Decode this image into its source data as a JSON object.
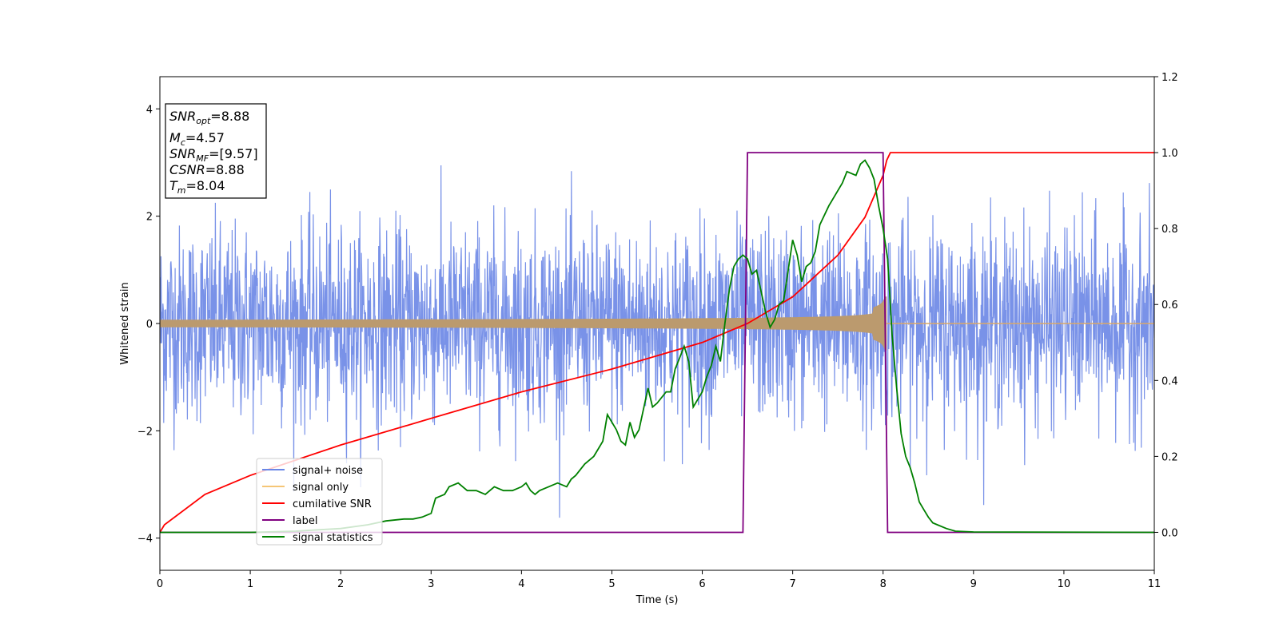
{
  "chart_data": {
    "type": "line",
    "xlabel": "Time (s)",
    "ylabel": "Whitened strain",
    "xlim": [
      0,
      11
    ],
    "ylim": [
      -4.6,
      4.6
    ],
    "y2lim": [
      -0.1,
      1.2
    ],
    "xticks": [
      "0",
      "1",
      "2",
      "3",
      "4",
      "5",
      "6",
      "7",
      "8",
      "9",
      "10",
      "11"
    ],
    "yticks": [
      "−4",
      "−2",
      "0",
      "2",
      "4"
    ],
    "y2ticks": [
      "0.0",
      "0.2",
      "0.4",
      "0.6",
      "0.8",
      "1.0",
      "1.2"
    ],
    "grid": false,
    "legend_position": "lower-left",
    "info_box": {
      "snr_opt": {
        "symbol": "SNR",
        "sub": "opt",
        "value": "=8.88"
      },
      "mc": {
        "symbol": "M",
        "sub": "c",
        "value": "=4.57"
      },
      "snr_mf": {
        "symbol": "SNR",
        "sub": "MF",
        "value": "=[9.57]"
      },
      "csnr": {
        "symbol": "CSNR",
        "sub": "",
        "value": "=8.88"
      },
      "tm": {
        "symbol": "T",
        "sub": "m",
        "value": "=8.04"
      }
    },
    "series": [
      {
        "name": "signal+ noise",
        "color": "#6a86e6",
        "axis": "left",
        "description_values": {
          "noise_std": 0.9,
          "range": [
            -3.7,
            4.2
          ],
          "spans": [
            0,
            11
          ]
        }
      },
      {
        "name": "signal only",
        "color": "#f5b041",
        "axis": "left",
        "envelope": {
          "t_start": 0,
          "t_merge": 8.04,
          "amp_start": 0.07,
          "amp_peak": 0.65
        }
      },
      {
        "name": "cumilative SNR",
        "color": "#ff0000",
        "axis": "right",
        "x": [
          0,
          0.05,
          0.5,
          1,
          2,
          3,
          4,
          5,
          6,
          6.5,
          7,
          7.5,
          7.8,
          8.0,
          8.04,
          8.08,
          11
        ],
        "y": [
          0.0,
          0.02,
          0.1,
          0.15,
          0.23,
          0.3,
          0.37,
          0.43,
          0.5,
          0.55,
          0.62,
          0.73,
          0.83,
          0.94,
          0.98,
          1.0,
          1.0
        ]
      },
      {
        "name": "label",
        "color": "#800080",
        "axis": "right",
        "x": [
          0,
          6.45,
          6.5,
          8.0,
          8.05,
          11
        ],
        "y": [
          0,
          0,
          1,
          1,
          0,
          0
        ]
      },
      {
        "name": "signal statistics",
        "color": "#008000",
        "axis": "right",
        "x": [
          0,
          1,
          1.5,
          2,
          2.3,
          2.5,
          2.7,
          2.8,
          2.9,
          3.0,
          3.05,
          3.15,
          3.2,
          3.3,
          3.4,
          3.5,
          3.6,
          3.7,
          3.8,
          3.9,
          4.0,
          4.05,
          4.1,
          4.15,
          4.2,
          4.3,
          4.4,
          4.5,
          4.55,
          4.6,
          4.7,
          4.8,
          4.85,
          4.9,
          4.95,
          5.0,
          5.05,
          5.1,
          5.15,
          5.2,
          5.25,
          5.3,
          5.4,
          5.45,
          5.5,
          5.6,
          5.65,
          5.7,
          5.75,
          5.8,
          5.85,
          5.9,
          6.0,
          6.05,
          6.1,
          6.15,
          6.2,
          6.25,
          6.3,
          6.35,
          6.4,
          6.45,
          6.5,
          6.55,
          6.6,
          6.7,
          6.75,
          6.8,
          6.85,
          6.9,
          6.95,
          7.0,
          7.05,
          7.1,
          7.15,
          7.2,
          7.25,
          7.3,
          7.4,
          7.5,
          7.55,
          7.6,
          7.7,
          7.75,
          7.8,
          7.85,
          7.9,
          7.95,
          8.0,
          8.05,
          8.1,
          8.15,
          8.2,
          8.25,
          8.3,
          8.35,
          8.4,
          8.45,
          8.5,
          8.55,
          8.6,
          8.7,
          8.8,
          9,
          11
        ],
        "y": [
          0,
          0,
          0.003,
          0.01,
          0.02,
          0.03,
          0.035,
          0.035,
          0.04,
          0.05,
          0.09,
          0.1,
          0.12,
          0.13,
          0.11,
          0.11,
          0.1,
          0.12,
          0.11,
          0.11,
          0.12,
          0.13,
          0.11,
          0.1,
          0.11,
          0.12,
          0.13,
          0.12,
          0.14,
          0.15,
          0.18,
          0.2,
          0.22,
          0.24,
          0.31,
          0.29,
          0.27,
          0.24,
          0.23,
          0.29,
          0.25,
          0.27,
          0.38,
          0.33,
          0.34,
          0.37,
          0.37,
          0.43,
          0.46,
          0.49,
          0.45,
          0.33,
          0.37,
          0.41,
          0.44,
          0.49,
          0.45,
          0.55,
          0.64,
          0.7,
          0.72,
          0.73,
          0.72,
          0.68,
          0.69,
          0.58,
          0.54,
          0.56,
          0.6,
          0.61,
          0.69,
          0.77,
          0.73,
          0.66,
          0.7,
          0.71,
          0.74,
          0.81,
          0.86,
          0.9,
          0.92,
          0.95,
          0.94,
          0.97,
          0.98,
          0.96,
          0.93,
          0.86,
          0.8,
          0.72,
          0.52,
          0.38,
          0.26,
          0.2,
          0.17,
          0.13,
          0.08,
          0.06,
          0.04,
          0.025,
          0.02,
          0.01,
          0.003,
          0.001,
          0
        ]
      }
    ]
  }
}
